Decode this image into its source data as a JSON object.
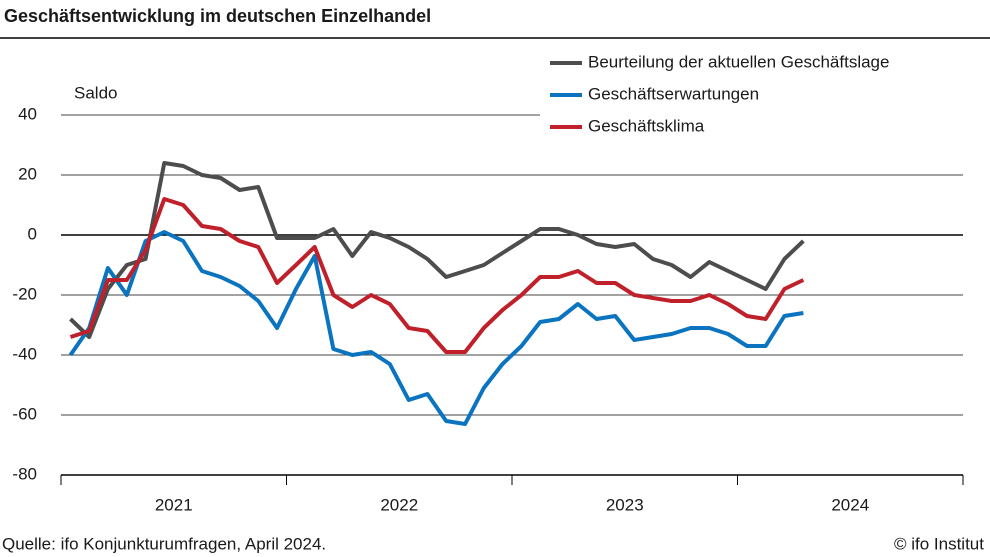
{
  "chart_data": {
    "type": "line",
    "title": "Geschäftsentwicklung im deutschen Einzelhandel",
    "ylabel": "Saldo",
    "source": "Quelle: ifo Konjunkturumfragen, April 2024.",
    "credit": "© ifo Institut",
    "x": [
      2021.042,
      2021.125,
      2021.208,
      2021.292,
      2021.375,
      2021.458,
      2021.542,
      2021.625,
      2021.708,
      2021.792,
      2021.875,
      2021.958,
      2022.042,
      2022.125,
      2022.208,
      2022.292,
      2022.375,
      2022.458,
      2022.542,
      2022.625,
      2022.708,
      2022.792,
      2022.875,
      2022.958,
      2023.042,
      2023.125,
      2023.208,
      2023.292,
      2023.375,
      2023.458,
      2023.542,
      2023.625,
      2023.708,
      2023.792,
      2023.875,
      2023.958,
      2024.042,
      2024.125,
      2024.208,
      2024.292
    ],
    "xlim": [
      2021,
      2025
    ],
    "xticks": [
      {
        "value": 2021.5,
        "label": "2021"
      },
      {
        "value": 2022.5,
        "label": "2022"
      },
      {
        "value": 2023.5,
        "label": "2023"
      },
      {
        "value": 2024.5,
        "label": "2024"
      }
    ],
    "ylim": [
      -80,
      40
    ],
    "yticks": [
      -80,
      -60,
      -40,
      -20,
      0,
      20,
      40
    ],
    "grid": true,
    "legend": "top-right",
    "series": [
      {
        "name": "Beurteilung der aktuellen Geschäftslage",
        "color": "#4d4d4d",
        "values": [
          -28,
          -34,
          -18,
          -10,
          -8,
          24,
          23,
          20,
          19,
          15,
          16,
          -1,
          -1,
          -1,
          2,
          -7,
          1,
          -1,
          -4,
          -8,
          -14,
          -12,
          -10,
          -6,
          -2,
          2,
          2,
          0,
          -3,
          -4,
          -3,
          -8,
          -10,
          -14,
          -9,
          -12,
          -15,
          -18,
          -8,
          -2
        ]
      },
      {
        "name": "Geschäftserwartungen",
        "color": "#0a74c0",
        "values": [
          -40,
          -31,
          -11,
          -20,
          -2,
          1,
          -2,
          -12,
          -14,
          -17,
          -22,
          -31,
          -18,
          -7,
          -38,
          -40,
          -39,
          -43,
          -55,
          -53,
          -62,
          -63,
          -51,
          -43,
          -37,
          -29,
          -28,
          -23,
          -28,
          -27,
          -35,
          -34,
          -33,
          -31,
          -31,
          -33,
          -37,
          -37,
          -27,
          -26
        ]
      },
      {
        "name": "Geschäftsklima",
        "color": "#c0202a",
        "values": [
          -34,
          -32,
          -15,
          -15,
          -5,
          12,
          10,
          3,
          2,
          -2,
          -4,
          -16,
          -10,
          -4,
          -20,
          -24,
          -20,
          -23,
          -31,
          -32,
          -39,
          -39,
          -31,
          -25,
          -20,
          -14,
          -14,
          -12,
          -16,
          -16,
          -20,
          -21,
          -22,
          -22,
          -20,
          -23,
          -27,
          -28,
          -18,
          -15
        ]
      }
    ]
  }
}
